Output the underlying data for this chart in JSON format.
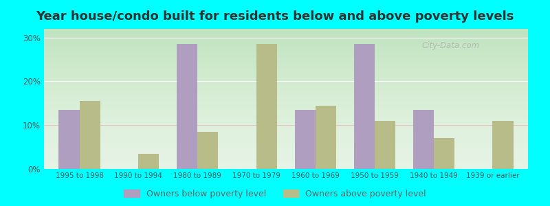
{
  "title": "Year house/condo built for residents below and above poverty levels",
  "categories": [
    "1995 to 1998",
    "1990 to 1994",
    "1980 to 1989",
    "1970 to 1979",
    "1960 to 1969",
    "1950 to 1959",
    "1940 to 1949",
    "1939 or earlier"
  ],
  "below_poverty": [
    13.5,
    0,
    28.5,
    0,
    13.5,
    28.5,
    13.5,
    0
  ],
  "above_poverty": [
    15.5,
    3.5,
    8.5,
    28.5,
    14.5,
    11,
    7,
    11
  ],
  "below_color": "#b09ec0",
  "above_color": "#b8bc88",
  "below_label": "Owners below poverty level",
  "above_label": "Owners above poverty level",
  "ylim": [
    0,
    32
  ],
  "yticks": [
    0,
    10,
    20,
    30
  ],
  "ytick_labels": [
    "0%",
    "10%",
    "20%",
    "30%"
  ],
  "outer_background": "#00ffff",
  "bar_width": 0.35,
  "title_fontsize": 13,
  "watermark": "City-Data.com"
}
